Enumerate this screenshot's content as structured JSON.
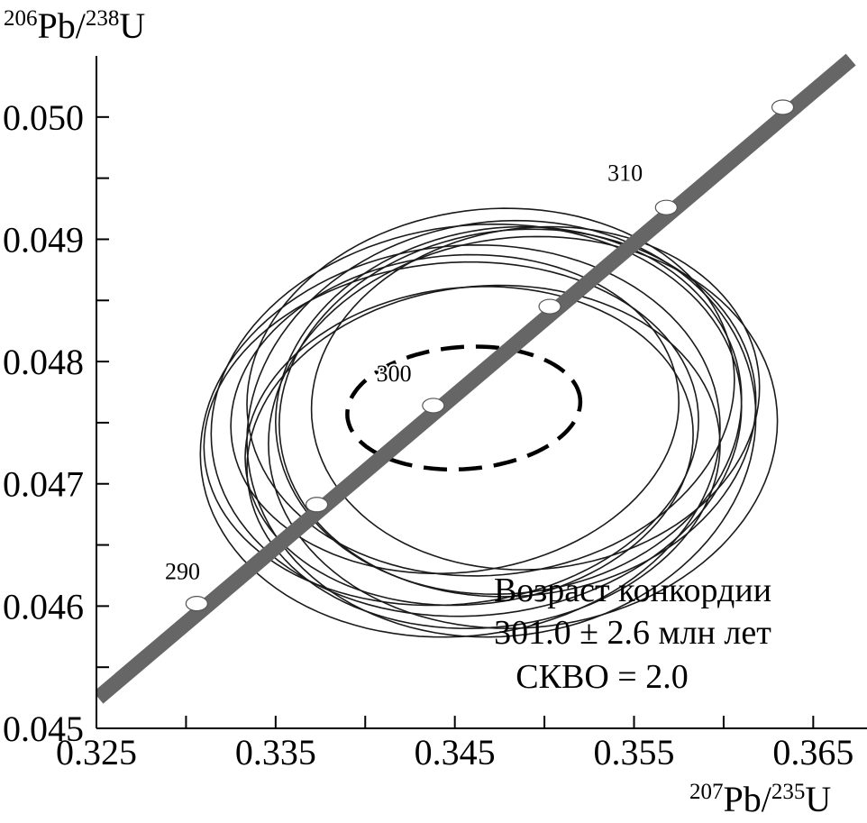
{
  "chart_data": {
    "type": "scatter",
    "subtype": "U-Pb concordia diagram with error ellipses",
    "title": "",
    "xlabel": {
      "sup1": "207",
      "base1": "Pb/",
      "sup2": "235",
      "base2": "U"
    },
    "ylabel": {
      "sup1": "206",
      "base1": "Pb/",
      "sup2": "238",
      "base2": "U"
    },
    "xlim": [
      0.325,
      0.368
    ],
    "ylim": [
      0.045,
      0.0505
    ],
    "x_ticks": [
      {
        "value": 0.325,
        "label": "0.325"
      },
      {
        "value": 0.335,
        "label": "0.335"
      },
      {
        "value": 0.345,
        "label": "0.345"
      },
      {
        "value": 0.355,
        "label": "0.355"
      },
      {
        "value": 0.365,
        "label": "0.365"
      }
    ],
    "x_minor_ticks": [
      0.33,
      0.34,
      0.35,
      0.36
    ],
    "y_ticks": [
      {
        "value": 0.045,
        "label": "0.045"
      },
      {
        "value": 0.046,
        "label": "0.046"
      },
      {
        "value": 0.047,
        "label": "0.047"
      },
      {
        "value": 0.048,
        "label": "0.048"
      },
      {
        "value": 0.049,
        "label": "0.049"
      },
      {
        "value": 0.05,
        "label": "0.050"
      }
    ],
    "y_minor_ticks": [
      0.0455,
      0.0465,
      0.0475,
      0.0485,
      0.0495
    ],
    "grid": false,
    "concordia": {
      "line": [
        [
          0.3251,
          0.04525
        ],
        [
          0.3671,
          0.05047
        ]
      ],
      "color": "#666666"
    },
    "age_markers": [
      {
        "x": 0.3306,
        "y": 0.04602
      },
      {
        "x": 0.3373,
        "y": 0.04683
      },
      {
        "x": 0.3438,
        "y": 0.04764
      },
      {
        "x": 0.3503,
        "y": 0.04845
      },
      {
        "x": 0.3568,
        "y": 0.04926
      },
      {
        "x": 0.3633,
        "y": 0.05008
      }
    ],
    "age_labels": [
      {
        "text": "290",
        "x": 0.3298,
        "y": 0.04622
      },
      {
        "text": "300",
        "x": 0.3416,
        "y": 0.04784
      },
      {
        "text": "310",
        "x": 0.3545,
        "y": 0.04948
      }
    ],
    "analyses": [
      {
        "cx": 0.3453,
        "cy": 0.04735,
        "rx": 0.0145,
        "ry": 0.0016,
        "rot": 0.0074
      },
      {
        "cx": 0.3462,
        "cy": 0.04752,
        "rx": 0.0148,
        "ry": 0.0016,
        "rot": 0.0076
      },
      {
        "cx": 0.347,
        "cy": 0.04775,
        "rx": 0.0136,
        "ry": 0.0015,
        "rot": 0.0073
      },
      {
        "cx": 0.3448,
        "cy": 0.04741,
        "rx": 0.0138,
        "ry": 0.0014,
        "rot": 0.0078
      },
      {
        "cx": 0.3485,
        "cy": 0.04758,
        "rx": 0.0133,
        "ry": 0.0015,
        "rot": 0.007
      },
      {
        "cx": 0.3476,
        "cy": 0.04745,
        "rx": 0.0142,
        "ry": 0.0017,
        "rot": 0.0071
      },
      {
        "cx": 0.3458,
        "cy": 0.04731,
        "rx": 0.0125,
        "ry": 0.0013,
        "rot": 0.0075
      },
      {
        "cx": 0.3495,
        "cy": 0.0477,
        "rx": 0.0125,
        "ry": 0.0014,
        "rot": 0.0071
      },
      {
        "cx": 0.3466,
        "cy": 0.04722,
        "rx": 0.0132,
        "ry": 0.0014,
        "rot": 0.0072
      },
      {
        "cx": 0.345,
        "cy": 0.04757,
        "rx": 0.0125,
        "ry": 0.0013,
        "rot": 0.0079
      },
      {
        "cx": 0.348,
        "cy": 0.0476,
        "rx": 0.013,
        "ry": 0.0015,
        "rot": 0.0072
      },
      {
        "cx": 0.3488,
        "cy": 0.04742,
        "rx": 0.0142,
        "ry": 0.0016,
        "rot": 0.0066
      }
    ],
    "concordia_age_ellipse": {
      "cx": 0.3455,
      "cy": 0.04762,
      "rx": 0.0065,
      "ry": 0.0005,
      "rot": 0.0077,
      "style": "dashed"
    },
    "annotation": {
      "line1": "Возраст конкордии",
      "line2": "301.0  ± 2.6 млн лет",
      "line3": "СКВО = 2.0"
    }
  }
}
